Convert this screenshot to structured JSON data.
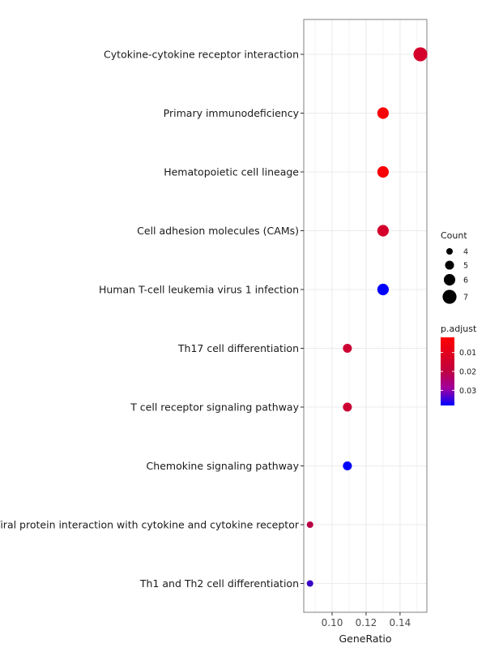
{
  "chart_data": {
    "type": "scatter",
    "xlabel": "GeneRatio",
    "x_ticks": [
      0.1,
      0.12,
      0.14
    ],
    "x_tick_labels": [
      "0.10",
      "0.12",
      "0.14"
    ],
    "xlim": [
      0.0833,
      0.1558
    ],
    "grid": true,
    "legend_position": "right",
    "categories": [
      "Cytokine-cytokine receptor interaction",
      "Primary immunodeficiency",
      "Hematopoietic cell lineage",
      "Cell adhesion molecules (CAMs)",
      "Human T-cell leukemia virus 1 infection",
      "Th17 cell differentiation",
      "T cell receptor signaling pathway",
      "Chemokine signaling pathway",
      "Viral protein interaction with cytokine and cytokine receptor",
      "Th1 and Th2 cell differentiation"
    ],
    "points": [
      {
        "category": "Cytokine-cytokine receptor interaction",
        "gene_ratio": 0.152,
        "count": 7,
        "p_adjust": 0.008
      },
      {
        "category": "Primary immunodeficiency",
        "gene_ratio": 0.13,
        "count": 6,
        "p_adjust": 0.003
      },
      {
        "category": "Hematopoietic cell lineage",
        "gene_ratio": 0.13,
        "count": 6,
        "p_adjust": 0.003
      },
      {
        "category": "Cell adhesion molecules (CAMs)",
        "gene_ratio": 0.13,
        "count": 6,
        "p_adjust": 0.008
      },
      {
        "category": "Human T-cell leukemia virus 1 infection",
        "gene_ratio": 0.13,
        "count": 6,
        "p_adjust": 0.038
      },
      {
        "category": "Th17 cell differentiation",
        "gene_ratio": 0.109,
        "count": 5,
        "p_adjust": 0.009
      },
      {
        "category": "T cell receptor signaling pathway",
        "gene_ratio": 0.109,
        "count": 5,
        "p_adjust": 0.009
      },
      {
        "category": "Chemokine signaling pathway",
        "gene_ratio": 0.109,
        "count": 5,
        "p_adjust": 0.038
      },
      {
        "category": "Viral protein interaction with cytokine and cytokine receptor",
        "gene_ratio": 0.087,
        "count": 4,
        "p_adjust": 0.012
      },
      {
        "category": "Th1 and Th2 cell differentiation",
        "gene_ratio": 0.087,
        "count": 4,
        "p_adjust": 0.03
      }
    ],
    "size_legend": {
      "title": "Count",
      "values": [
        4,
        5,
        6,
        7
      ],
      "labels": [
        "4",
        "5",
        "6",
        "7"
      ]
    },
    "color_legend": {
      "title": "p.adjust",
      "range": [
        0.002,
        0.038
      ],
      "ticks": [
        0.01,
        0.02,
        0.03
      ],
      "tick_labels": [
        "0.01",
        "0.02",
        "0.03"
      ],
      "low_color": "#ff0000",
      "high_color": "#0000ff"
    },
    "colors": {
      "panel_border": "#808080",
      "grid": "#ebebeb",
      "background": "#ffffff"
    }
  }
}
